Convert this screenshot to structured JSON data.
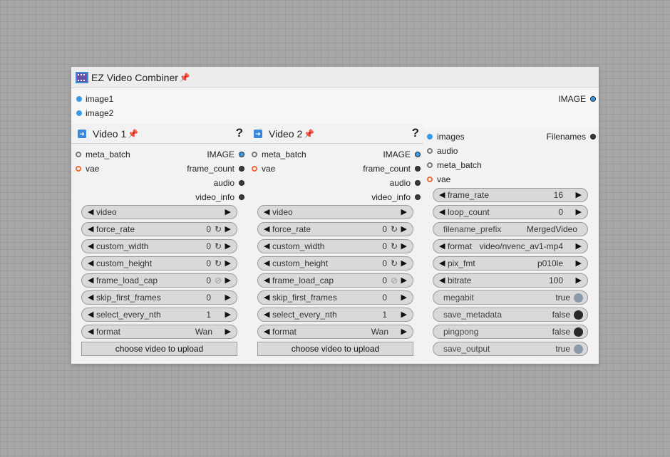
{
  "main": {
    "title": "EZ Video Combiner",
    "inputs": [
      "image1",
      "image2"
    ],
    "output": "IMAGE"
  },
  "video_nodes": [
    {
      "title": "Video 1",
      "help": "?",
      "inputs": [
        "meta_batch",
        "vae"
      ],
      "outputs": [
        "IMAGE",
        "frame_count",
        "audio",
        "video_info"
      ],
      "widgets": [
        {
          "name": "video",
          "value": ""
        },
        {
          "name": "force_rate",
          "value": "0"
        },
        {
          "name": "custom_width",
          "value": "0"
        },
        {
          "name": "custom_height",
          "value": "0"
        },
        {
          "name": "frame_load_cap",
          "value": "0"
        },
        {
          "name": "skip_first_frames",
          "value": "0"
        },
        {
          "name": "select_every_nth",
          "value": "1"
        },
        {
          "name": "format",
          "value": "Wan"
        }
      ],
      "upload": "choose video to upload"
    },
    {
      "title": "Video 2",
      "help": "?",
      "inputs": [
        "meta_batch",
        "vae"
      ],
      "outputs": [
        "IMAGE",
        "frame_count",
        "audio",
        "video_info"
      ],
      "widgets": [
        {
          "name": "video",
          "value": ""
        },
        {
          "name": "force_rate",
          "value": "0"
        },
        {
          "name": "custom_width",
          "value": "0"
        },
        {
          "name": "custom_height",
          "value": "0"
        },
        {
          "name": "frame_load_cap",
          "value": "0"
        },
        {
          "name": "skip_first_frames",
          "value": "0"
        },
        {
          "name": "select_every_nth",
          "value": "1"
        },
        {
          "name": "format",
          "value": "Wan"
        }
      ],
      "upload": "choose video to upload"
    }
  ],
  "combiner": {
    "inputs": [
      "images",
      "audio",
      "meta_batch",
      "vae"
    ],
    "output": "Filenames",
    "widgets": [
      {
        "name": "frame_rate",
        "value": "16"
      },
      {
        "name": "loop_count",
        "value": "0"
      },
      {
        "name": "filename_prefix",
        "value": "MergedVideo"
      },
      {
        "name": "format",
        "value": "video/nvenc_av1-mp4"
      },
      {
        "name": "pix_fmt",
        "value": "p010le"
      },
      {
        "name": "bitrate",
        "value": "100"
      },
      {
        "name": "megabit",
        "value": "true"
      },
      {
        "name": "save_metadata",
        "value": "false"
      },
      {
        "name": "pingpong",
        "value": "false"
      },
      {
        "name": "save_output",
        "value": "true"
      }
    ]
  },
  "glyphs": {
    "left": "◀",
    "right": "▶",
    "reset": "↻",
    "disabled": "⊘",
    "pin": "📌"
  },
  "colors": {
    "link_blue": "#3a9be8",
    "vae_orange": "#f06a3a",
    "pin": "#e0245e"
  }
}
